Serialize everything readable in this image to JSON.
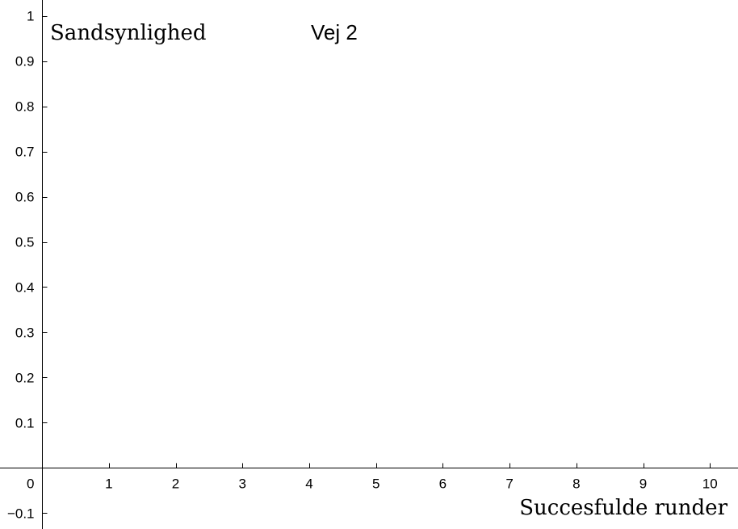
{
  "chart_data": {
    "type": "bar",
    "title": "Vej 2",
    "xlabel": "Succesfulde runder",
    "ylabel": "Sandsynlighed",
    "x_ticks": [
      0,
      1,
      2,
      3,
      4,
      5,
      6,
      7,
      8,
      9,
      10
    ],
    "x_tick_labels": [
      "0",
      "1",
      "2",
      "3",
      "4",
      "5",
      "6",
      "7",
      "8",
      "9",
      "10"
    ],
    "y_ticks": [
      -0.1,
      0.1,
      0.2,
      0.3,
      0.4,
      0.5,
      0.6,
      0.7,
      0.8,
      0.9,
      1
    ],
    "y_tick_labels": [
      "−0.1",
      "0.1",
      "0.2",
      "0.3",
      "0.4",
      "0.5",
      "0.6",
      "0.7",
      "0.8",
      "0.9",
      "1"
    ],
    "xlim": [
      -0.63,
      10.42
    ],
    "ylim": [
      -0.135,
      1.035
    ],
    "categories": [],
    "values": [],
    "grid": false,
    "axis_color": "#000000"
  }
}
